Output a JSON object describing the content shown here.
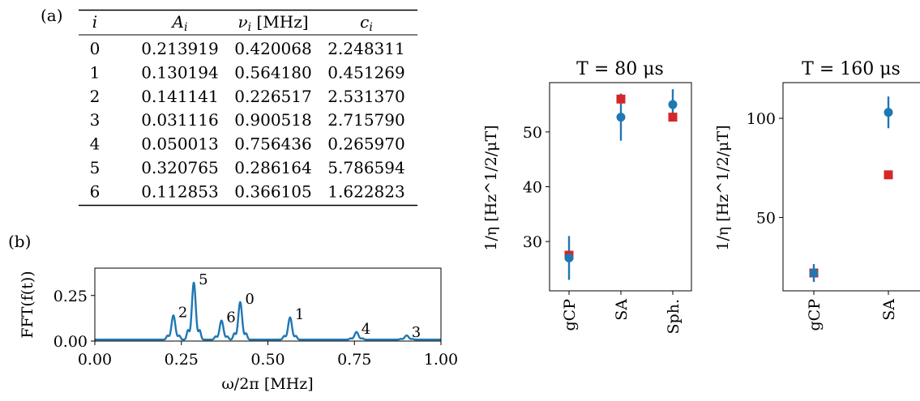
{
  "panel_labels": {
    "a": "(a)",
    "b": "(b)"
  },
  "table": {
    "headers": [
      {
        "main": "i",
        "sub": "",
        "suffix": ""
      },
      {
        "main": "A",
        "sub": "i",
        "suffix": ""
      },
      {
        "main": "ν",
        "sub": "i",
        "suffix": " [MHz]"
      },
      {
        "main": "c",
        "sub": "i",
        "suffix": ""
      }
    ],
    "rows": [
      [
        "0",
        "0.213919",
        "0.420068",
        "2.248311"
      ],
      [
        "1",
        "0.130194",
        "0.564180",
        "0.451269"
      ],
      [
        "2",
        "0.141141",
        "0.226517",
        "2.531370"
      ],
      [
        "3",
        "0.031116",
        "0.900518",
        "2.715790"
      ],
      [
        "4",
        "0.050013",
        "0.756436",
        "0.265970"
      ],
      [
        "5",
        "0.320765",
        "0.286164",
        "5.786594"
      ],
      [
        "6",
        "0.112853",
        "0.366105",
        "1.622823"
      ]
    ]
  },
  "chart_data": [
    {
      "type": "line",
      "ylabel": "FFT(f(t))",
      "xlabel": "ω/2π [MHz]",
      "xlim": [
        0,
        1
      ],
      "ylim": [
        0,
        0.4
      ],
      "xticks": [
        "0.00",
        "0.25",
        "0.50",
        "0.75",
        "1.00"
      ],
      "yticks": [
        "0.00",
        "0.25"
      ],
      "peaks": [
        {
          "label": "0",
          "x": 0.42,
          "y": 0.214
        },
        {
          "label": "1",
          "x": 0.564,
          "y": 0.13
        },
        {
          "label": "2",
          "x": 0.227,
          "y": 0.141
        },
        {
          "label": "3",
          "x": 0.901,
          "y": 0.031
        },
        {
          "label": "4",
          "x": 0.756,
          "y": 0.05
        },
        {
          "label": "5",
          "x": 0.286,
          "y": 0.321
        },
        {
          "label": "6",
          "x": 0.366,
          "y": 0.113
        }
      ],
      "color": "#1f77b4"
    },
    {
      "type": "scatter",
      "title": "T = 80 μs",
      "ylabel": "1/η [Hz^1/2/μT]",
      "categories": [
        "gCP",
        "SA",
        "Sph."
      ],
      "ylim": [
        21,
        59
      ],
      "yticks": [
        "30",
        "40",
        "50"
      ],
      "series": [
        {
          "marker": "circle",
          "color": "#1f77b4",
          "values": [
            27.0,
            52.7,
            55.0
          ],
          "errors": [
            4.0,
            4.3,
            2.8
          ]
        },
        {
          "marker": "square",
          "color": "#d62728",
          "values": [
            27.5,
            56.0,
            52.7
          ]
        }
      ]
    },
    {
      "type": "scatter",
      "title": "T = 160 μs",
      "ylabel": "1/η [Hz^1/2/μT]",
      "categories": [
        "gCP",
        "SA"
      ],
      "ylim": [
        13,
        118
      ],
      "yticks": [
        "50",
        "100"
      ],
      "series": [
        {
          "marker": "circle",
          "color": "#1f77b4",
          "values": [
            22.0,
            103.0
          ],
          "errors": [
            4.5,
            8.0
          ]
        },
        {
          "marker": "square",
          "color": "#d62728",
          "values": [
            22.0,
            71.5
          ]
        }
      ]
    }
  ]
}
